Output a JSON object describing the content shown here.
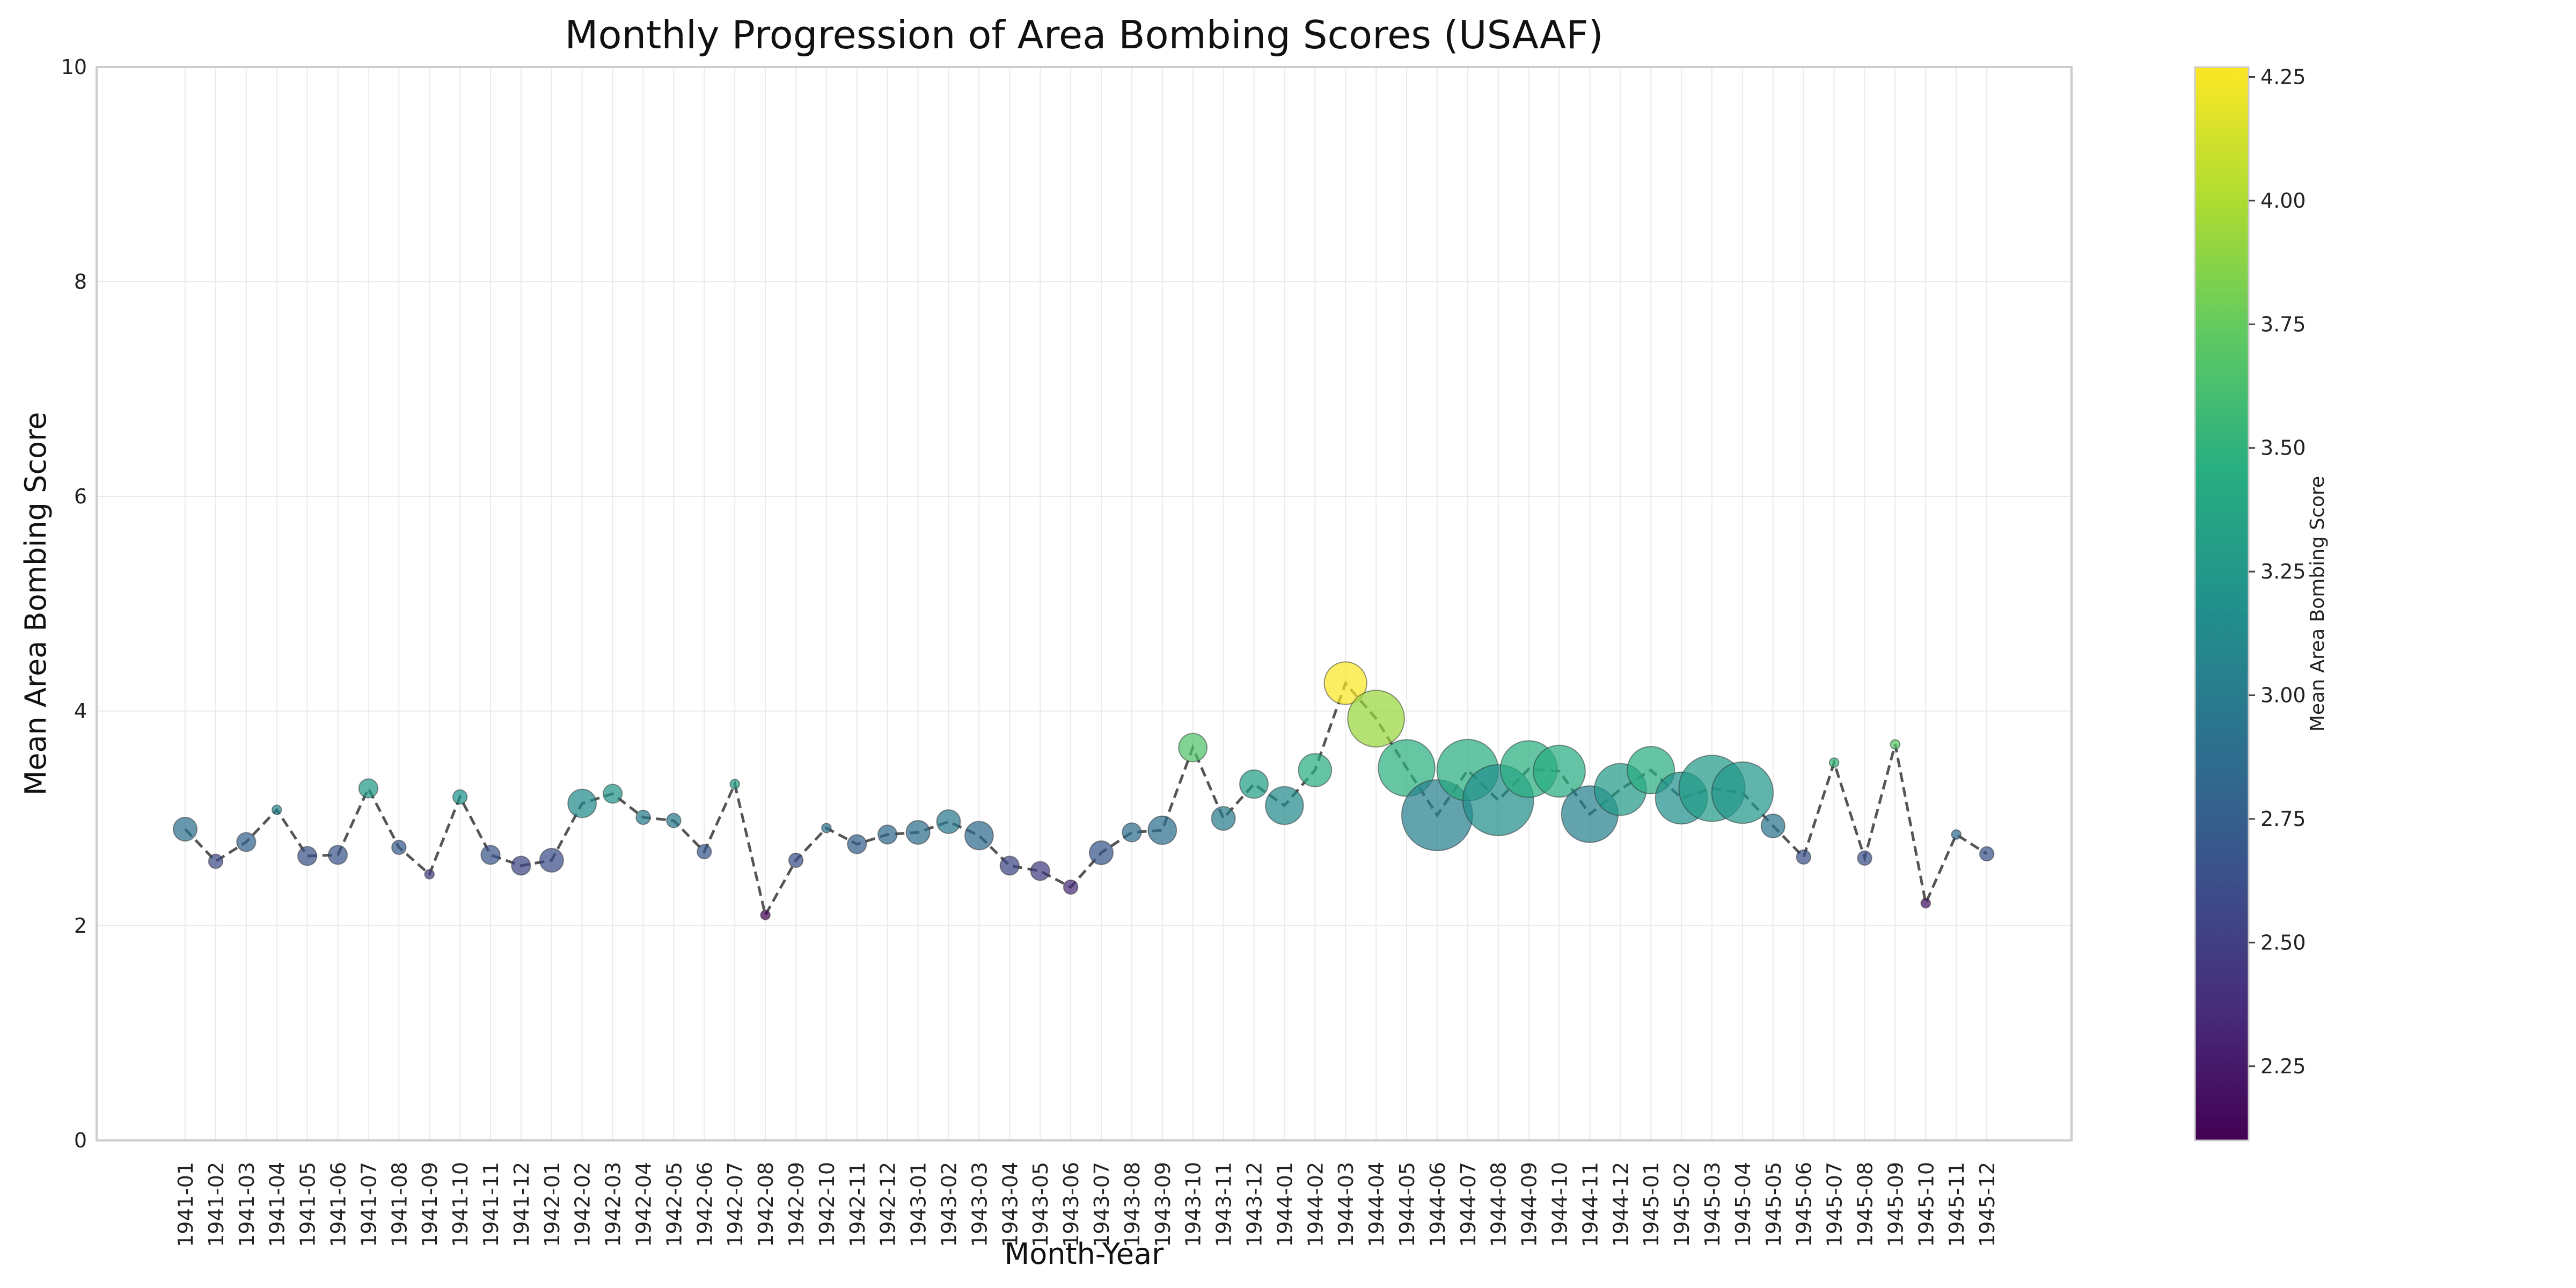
{
  "chart_data": {
    "type": "scatter",
    "title": "Monthly Progression of Area Bombing Scores (USAAF)",
    "xlabel": "Month-Year",
    "ylabel": "Mean Area Bombing Score",
    "ylim": [
      0,
      10
    ],
    "yticks": [
      "0",
      "2",
      "4",
      "6",
      "8",
      "10"
    ],
    "grid": true,
    "line_style": "dashed",
    "line_color": "#555555",
    "colorbar": {
      "label": "Mean Area Bombing Score",
      "range": [
        2.1,
        4.27
      ],
      "ticks": [
        "2.25",
        "2.50",
        "2.75",
        "3.00",
        "3.25",
        "3.50",
        "3.75",
        "4.00",
        "4.25"
      ],
      "colormap": "viridis"
    },
    "categories": [
      "1941-01",
      "1941-02",
      "1941-03",
      "1941-04",
      "1941-05",
      "1941-06",
      "1941-07",
      "1941-08",
      "1941-09",
      "1941-10",
      "1941-11",
      "1941-12",
      "1942-01",
      "1942-02",
      "1942-03",
      "1942-04",
      "1942-05",
      "1942-06",
      "1942-07",
      "1942-08",
      "1942-09",
      "1942-10",
      "1942-11",
      "1942-12",
      "1943-01",
      "1943-02",
      "1943-03",
      "1943-04",
      "1943-05",
      "1943-06",
      "1943-07",
      "1943-08",
      "1943-09",
      "1943-10",
      "1943-11",
      "1943-12",
      "1944-01",
      "1944-02",
      "1944-03",
      "1944-04",
      "1944-05",
      "1944-06",
      "1944-07",
      "1944-08",
      "1944-09",
      "1944-10",
      "1944-11",
      "1944-12",
      "1945-01",
      "1945-02",
      "1945-03",
      "1945-04",
      "1945-05",
      "1945-06",
      "1945-07",
      "1945-08",
      "1945-09",
      "1945-10",
      "1945-11",
      "1945-12"
    ],
    "values": [
      2.9,
      2.6,
      2.78,
      3.08,
      2.65,
      2.66,
      3.28,
      2.73,
      2.48,
      3.2,
      2.66,
      2.56,
      2.61,
      3.14,
      3.23,
      3.01,
      2.98,
      2.69,
      3.32,
      2.1,
      2.61,
      2.91,
      2.76,
      2.85,
      2.87,
      2.97,
      2.84,
      2.56,
      2.51,
      2.36,
      2.68,
      2.87,
      2.89,
      3.66,
      3.0,
      3.32,
      3.12,
      3.45,
      4.26,
      3.93,
      3.47,
      3.03,
      3.45,
      3.17,
      3.46,
      3.44,
      3.04,
      3.27,
      3.45,
      3.19,
      3.28,
      3.24,
      2.93,
      2.64,
      3.52,
      2.63,
      3.69,
      2.21,
      2.85,
      2.67
    ],
    "sizes": [
      5,
      3,
      4,
      2,
      4,
      4,
      4,
      3,
      2,
      3,
      4,
      4,
      5,
      6,
      4,
      3,
      3,
      3,
      2,
      2,
      3,
      2,
      4,
      4,
      5,
      5,
      6,
      4,
      4,
      3,
      5,
      4,
      6,
      6,
      5,
      6,
      8,
      7,
      9,
      12,
      12,
      15,
      13,
      15,
      12,
      11,
      12,
      11,
      10,
      11,
      14,
      13,
      5,
      3,
      2,
      3,
      2,
      2,
      2,
      3
    ]
  }
}
